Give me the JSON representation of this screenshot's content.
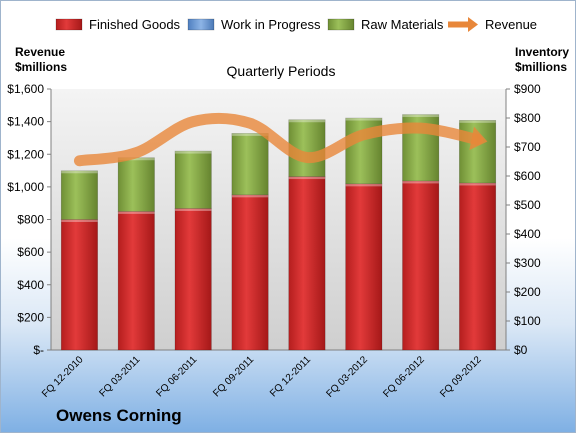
{
  "chart_data": {
    "type": "bar",
    "subtitle": "Quarterly Periods",
    "company": "Owens Corning",
    "categories": [
      "FQ 12-2010",
      "FQ 03-2011",
      "FQ 06-2011",
      "FQ 09-2011",
      "FQ 12-2011",
      "FQ 03-2012",
      "FQ 06-2012",
      "FQ 09-2012"
    ],
    "left_axis": {
      "title_line1": "Revenue",
      "title_line2": "$millions",
      "range": [
        0,
        1600
      ],
      "ticks": [
        "$-",
        "$200",
        "$400",
        "$600",
        "$800",
        "$1,000",
        "$1,200",
        "$1,400",
        "$1,600"
      ]
    },
    "right_axis": {
      "title_line1": "Inventory",
      "title_line2": "$millions",
      "range": [
        0,
        900
      ],
      "ticks": [
        "$0",
        "$100",
        "$200",
        "$300",
        "$400",
        "$500",
        "$600",
        "$700",
        "$800",
        "$900"
      ]
    },
    "stacked_series": [
      {
        "name": "Finished Goods",
        "color": "#d62b2b",
        "values": [
          450,
          478,
          488,
          535,
          598,
          573,
          583,
          576
        ]
      },
      {
        "name": "Work in Progress",
        "color": "#6f9fd8",
        "values": [
          0,
          0,
          0,
          0,
          0,
          0,
          0,
          0
        ]
      },
      {
        "name": "Raw Materials",
        "color": "#8cb04a",
        "values": [
          168,
          185,
          198,
          212,
          196,
          227,
          229,
          216
        ]
      }
    ],
    "line_series": {
      "name": "Revenue",
      "color": "#e8873a",
      "values": [
        1160,
        1210,
        1400,
        1390,
        1180,
        1320,
        1360,
        1290
      ]
    },
    "legend_position": "top",
    "grid": false
  }
}
